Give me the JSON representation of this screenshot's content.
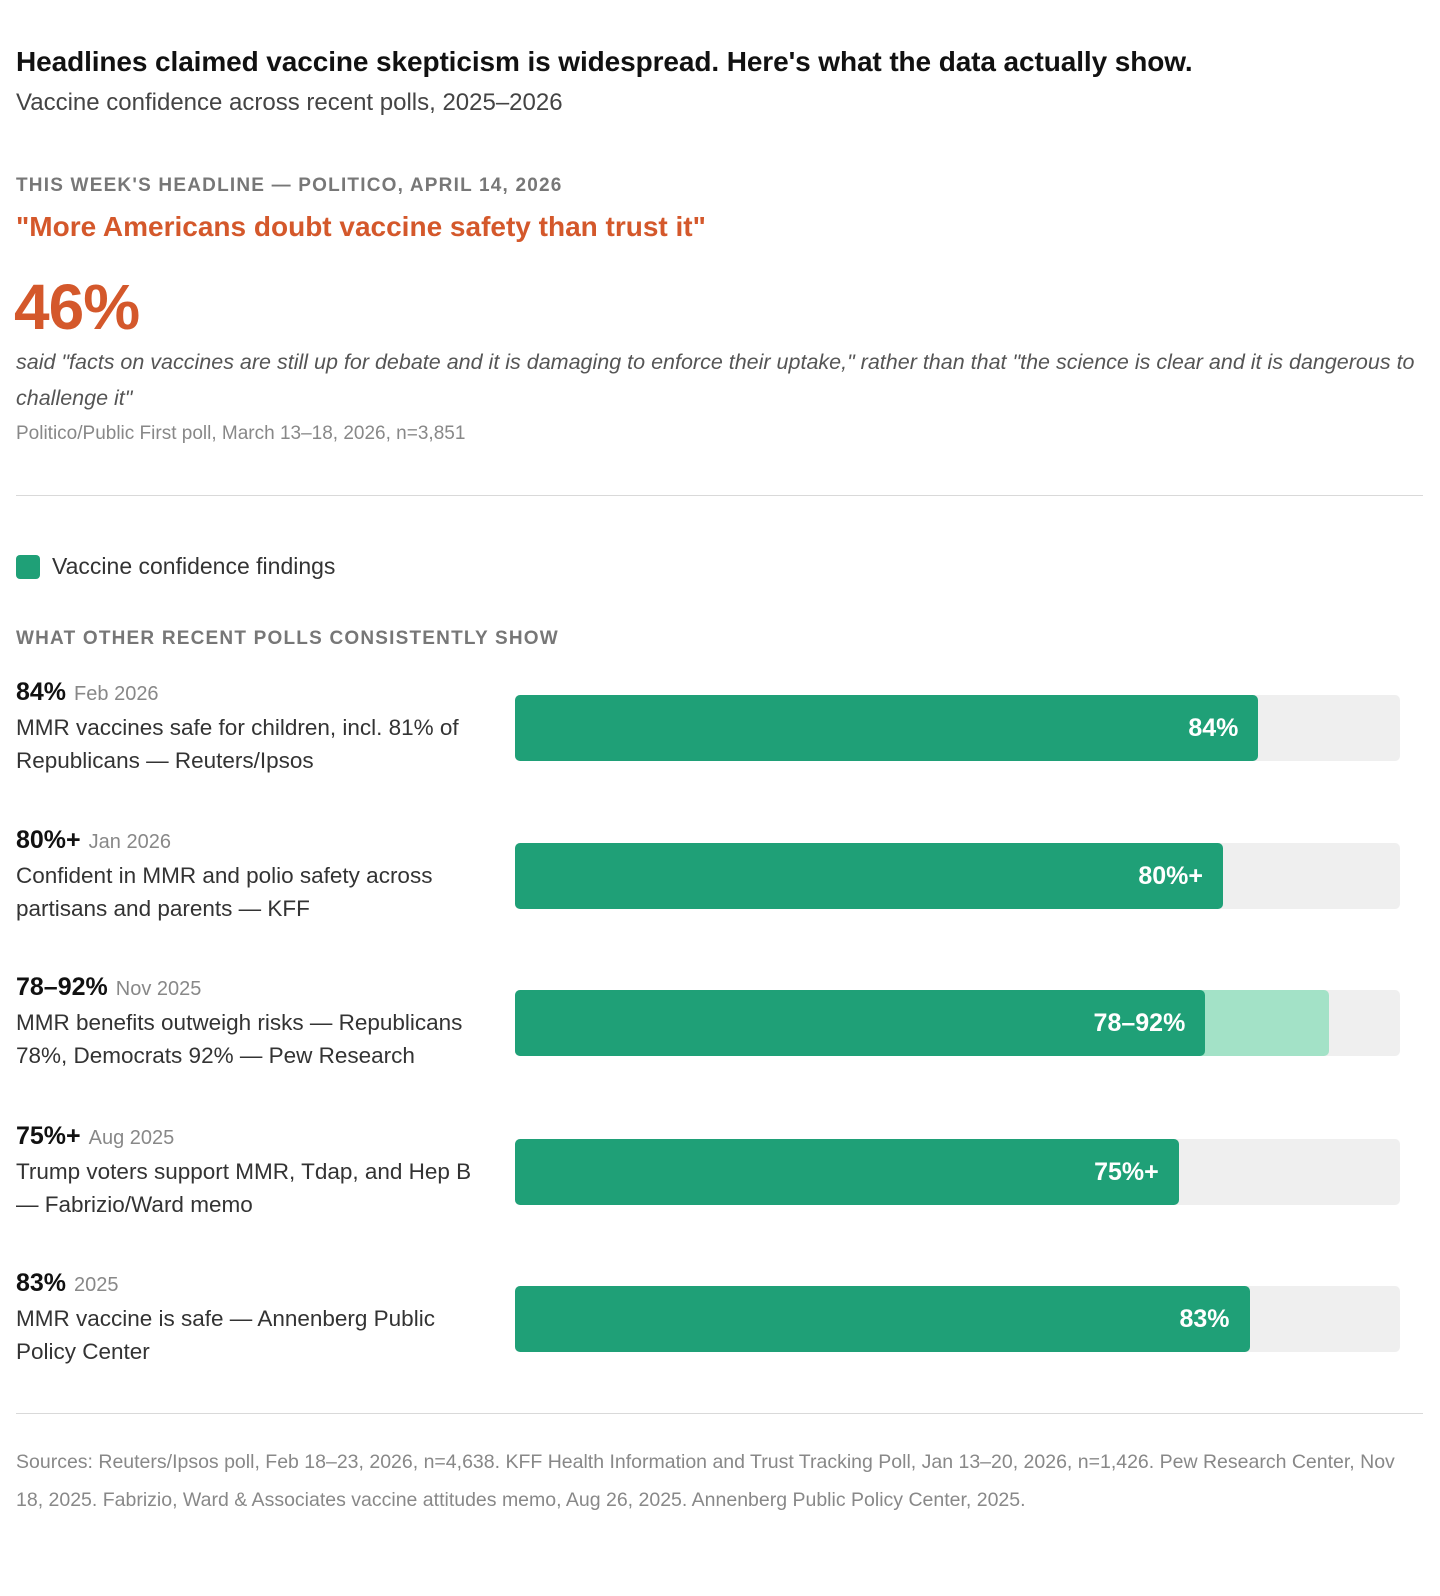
{
  "header": {
    "title": "Headlines claimed vaccine skepticism is widespread. Here's what the data actually show.",
    "subtitle": "Vaccine confidence across recent polls, 2025–2026"
  },
  "headline_block": {
    "kicker": "THIS WEEK'S HEADLINE — POLITICO, APRIL 14, 2026",
    "quote": "\"More Americans doubt vaccine safety than trust it\"",
    "big_number": "46%",
    "description": "said \"facts on vaccines are still up for debate and it is damaging to enforce their uptake,\" rather than that \"the science is clear and it is dangerous to challenge it\"",
    "source": "Politico/Public First poll, March 13–18, 2026, n=3,851"
  },
  "legend": {
    "label": "Vaccine confidence findings"
  },
  "section_heading": "WHAT OTHER RECENT POLLS CONSISTENTLY SHOW",
  "colors": {
    "accent_orange": "#d4582b",
    "bar_green": "#1fa077",
    "range_green": "#a3e2c7",
    "track_gray": "#efefef"
  },
  "chart_data": {
    "type": "bar",
    "orientation": "horizontal",
    "xlim": [
      0,
      100
    ],
    "legend": [
      "Vaccine confidence findings"
    ],
    "categories": [
      "MMR vaccines safe for children, incl. 81% of Republicans — Reuters/Ipsos",
      "Confident in MMR and polio safety across partisans and parents — KFF",
      "MMR benefits outweigh risks — Republicans 78%, Democrats 92% — Pew Research",
      "Trump voters support MMR, Tdap, and Hep B — Fabrizio/Ward memo",
      "MMR vaccine is safe — Annenberg Public Policy Center"
    ],
    "bars": [
      {
        "value": 84,
        "range_high": null,
        "value_label": "84%",
        "date": "Feb 2026",
        "text": "MMR vaccines safe for children, incl. 81% of Republicans — Reuters/Ipsos"
      },
      {
        "value": 80,
        "range_high": null,
        "value_label": "80%+",
        "date": "Jan 2026",
        "text": "Confident in MMR and polio safety across partisans and parents — KFF"
      },
      {
        "value": 78,
        "range_high": 92,
        "value_label": "78–92%",
        "date": "Nov 2025",
        "text": "MMR benefits outweigh risks — Republicans 78%, Democrats 92% — Pew Research"
      },
      {
        "value": 75,
        "range_high": null,
        "value_label": "75%+",
        "date": "Aug 2025",
        "text": "Trump voters support MMR, Tdap, and Hep B — Fabrizio/Ward memo"
      },
      {
        "value": 83,
        "range_high": null,
        "value_label": "83%",
        "date": "2025",
        "text": "MMR vaccine is safe — Annenberg Public Policy Center"
      }
    ]
  },
  "footer": {
    "sources": "Sources: Reuters/Ipsos poll, Feb 18–23, 2026, n=4,638. KFF Health Information and Trust Tracking Poll, Jan 13–20, 2026, n=1,426. Pew Research Center, Nov 18, 2025. Fabrizio, Ward & Associates vaccine attitudes memo, Aug 26, 2025. Annenberg Public Policy Center, 2025."
  }
}
